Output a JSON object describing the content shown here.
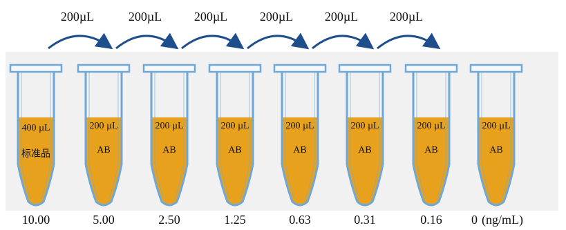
{
  "transfers": [
    "200µL",
    "200µL",
    "200µL",
    "200µL",
    "200µL",
    "200µL"
  ],
  "tubes": [
    {
      "volume": "400 µL",
      "content": "标准品",
      "concentration": "10.00"
    },
    {
      "volume": "200 µL",
      "content": "AB",
      "concentration": "5.00"
    },
    {
      "volume": "200 µL",
      "content": "AB",
      "concentration": "2.50"
    },
    {
      "volume": "200 µL",
      "content": "AB",
      "concentration": "1.25"
    },
    {
      "volume": "200 µL",
      "content": "AB",
      "concentration": "0.63"
    },
    {
      "volume": "200 µL",
      "content": "AB",
      "concentration": "0.31"
    },
    {
      "volume": "200 µL",
      "content": "AB",
      "concentration": "0.16"
    },
    {
      "volume": "200 µL",
      "content": "AB",
      "concentration": "0"
    }
  ],
  "unit": "(ng/mL)",
  "colors": {
    "liquid": "#E8A11C",
    "tube_outline": "#6FA8D6",
    "cap_fill": "#F4F8FC",
    "arrow": "#1F4E8C",
    "background_panel": "#F1F1F1"
  }
}
